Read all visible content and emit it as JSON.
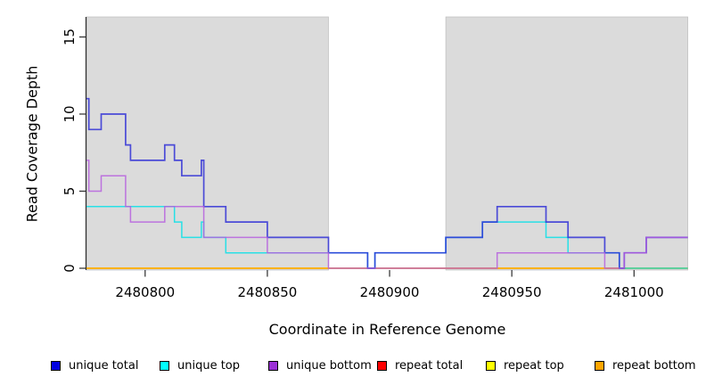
{
  "chart_data": {
    "type": "line",
    "subtype": "step-post",
    "title": "",
    "xlabel": "Coordinate in Reference Genome",
    "ylabel": "Read Coverage Depth",
    "xlim": [
      2480776,
      2481022
    ],
    "ylim": [
      0,
      16.3
    ],
    "grid": false,
    "legend_position": "bottom",
    "x_ticks": [
      {
        "value": 2480800,
        "label": "2480800"
      },
      {
        "value": 2480850,
        "label": "2480850"
      },
      {
        "value": 2480900,
        "label": "2480900"
      },
      {
        "value": 2480950,
        "label": "2480950"
      },
      {
        "value": 2481000,
        "label": "2481000"
      }
    ],
    "y_ticks": [
      {
        "value": 0,
        "label": "0"
      },
      {
        "value": 5,
        "label": "5"
      },
      {
        "value": 10,
        "label": "10"
      },
      {
        "value": 15,
        "label": "15"
      }
    ],
    "background_regions": [
      {
        "name": "covered-region-left",
        "x_start": 2480776,
        "x_end": 2480875,
        "color": "#DBDBDB",
        "border": "#C0C0C0"
      },
      {
        "name": "covered-region-right",
        "x_start": 2480923,
        "x_end": 2481022,
        "color": "#DBDBDB",
        "border": "#C0C0C0"
      }
    ],
    "series": [
      {
        "name": "unique total",
        "legend_color": "#0000E0",
        "line_color": "#2B2BD5",
        "steps": [
          [
            2480776,
            11
          ],
          [
            2480777,
            9
          ],
          [
            2480782,
            10
          ],
          [
            2480792,
            8
          ],
          [
            2480794,
            7
          ],
          [
            2480808,
            8
          ],
          [
            2480812,
            7
          ],
          [
            2480815,
            6
          ],
          [
            2480823,
            7
          ],
          [
            2480824,
            4
          ],
          [
            2480833,
            3
          ],
          [
            2480850,
            2
          ],
          [
            2480875,
            1
          ],
          [
            2480891,
            0
          ],
          [
            2480894,
            1
          ],
          [
            2480923,
            2
          ],
          [
            2480938,
            3
          ],
          [
            2480944,
            4
          ],
          [
            2480964,
            3
          ],
          [
            2480973,
            2
          ],
          [
            2480988,
            1
          ],
          [
            2480994,
            0
          ],
          [
            2480996,
            1
          ],
          [
            2481005,
            2
          ],
          [
            2481022,
            2
          ]
        ]
      },
      {
        "name": "unique top",
        "legend_color": "#00FFFF",
        "line_color": "#00E0E8",
        "steps": [
          [
            2480776,
            4
          ],
          [
            2480812,
            3
          ],
          [
            2480815,
            2
          ],
          [
            2480823,
            3
          ],
          [
            2480824,
            2
          ],
          [
            2480833,
            1
          ],
          [
            2480891,
            0
          ],
          [
            2480894,
            1
          ],
          [
            2480923,
            2
          ],
          [
            2480938,
            3
          ],
          [
            2480964,
            2
          ],
          [
            2480973,
            1
          ],
          [
            2480994,
            0
          ],
          [
            2481022,
            0
          ]
        ]
      },
      {
        "name": "unique bottom",
        "legend_color": "#9B30D6",
        "line_color": "#B55CDE",
        "steps": [
          [
            2480776,
            7
          ],
          [
            2480777,
            5
          ],
          [
            2480782,
            6
          ],
          [
            2480792,
            4
          ],
          [
            2480794,
            3
          ],
          [
            2480808,
            4
          ],
          [
            2480824,
            2
          ],
          [
            2480850,
            1
          ],
          [
            2480875,
            0
          ],
          [
            2480944,
            1
          ],
          [
            2480988,
            0
          ],
          [
            2480996,
            1
          ],
          [
            2481005,
            2
          ],
          [
            2481022,
            2
          ]
        ]
      },
      {
        "name": "repeat total",
        "legend_color": "#FF0000",
        "line_color": "#EE2C2C",
        "steps": [
          [
            2480776,
            0
          ],
          [
            2481022,
            0
          ]
        ]
      },
      {
        "name": "repeat top",
        "legend_color": "#FFFF00",
        "line_color": "#FFFF00",
        "steps": [
          [
            2480776,
            0
          ],
          [
            2481022,
            0
          ]
        ]
      },
      {
        "name": "repeat bottom",
        "legend_color": "#FFA500",
        "line_color": "#FFA500",
        "steps": [
          [
            2480776,
            0
          ],
          [
            2481022,
            0
          ]
        ]
      }
    ]
  }
}
